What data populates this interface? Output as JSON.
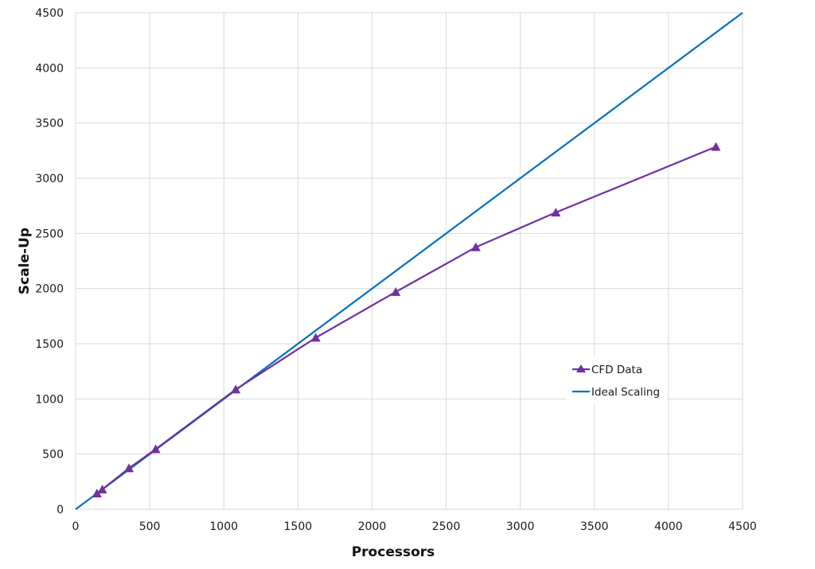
{
  "chart_data": {
    "type": "line",
    "title": "",
    "xlabel": "Processors",
    "ylabel": "Scale-Up",
    "xlim": [
      0,
      4500
    ],
    "ylim": [
      0,
      4500
    ],
    "xticks": [
      0,
      500,
      1000,
      1500,
      2000,
      2500,
      3000,
      3500,
      4000,
      4500
    ],
    "yticks": [
      0,
      500,
      1000,
      1500,
      2000,
      2500,
      3000,
      3500,
      4000,
      4500
    ],
    "grid": true,
    "legend_position": "inside-right",
    "series": [
      {
        "name": "CFD Data",
        "color": "#7030A0",
        "marker": "triangle",
        "x": [
          144,
          180,
          360,
          540,
          1080,
          1620,
          2160,
          2700,
          3240,
          4320
        ],
        "y": [
          144,
          180,
          372,
          545,
          1086,
          1555,
          1970,
          2375,
          2690,
          3285
        ]
      },
      {
        "name": "Ideal Scaling",
        "color": "#0070C0",
        "marker": "none",
        "x": [
          0,
          4500
        ],
        "y": [
          0,
          4500
        ]
      }
    ]
  }
}
